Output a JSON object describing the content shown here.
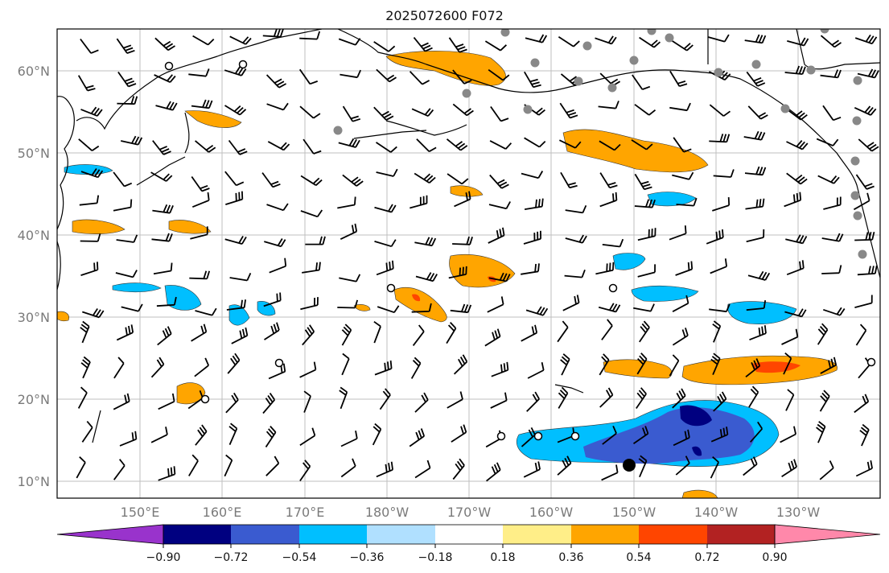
{
  "title": "2025072600 F072",
  "map": {
    "projection": "cylindrical",
    "extent": {
      "lon_min": 140,
      "lon_max": 240,
      "lat_min": 8,
      "lat_max": 65
    },
    "lat_labels": [
      {
        "lat": 10,
        "text": "10°N"
      },
      {
        "lat": 20,
        "text": "20°N"
      },
      {
        "lat": 30,
        "text": "30°N"
      },
      {
        "lat": 40,
        "text": "40°N"
      },
      {
        "lat": 50,
        "text": "50°N"
      },
      {
        "lat": 60,
        "text": "60°N"
      }
    ],
    "lon_labels": [
      {
        "lon": 150,
        "text": "150°E"
      },
      {
        "lon": 160,
        "text": "160°E"
      },
      {
        "lon": 170,
        "text": "170°E"
      },
      {
        "lon": 180,
        "text": "180°W"
      },
      {
        "lon": 190,
        "text": "170°W"
      },
      {
        "lon": 200,
        "text": "160°W"
      },
      {
        "lon": 210,
        "text": "150°W"
      },
      {
        "lon": 220,
        "text": "140°W"
      },
      {
        "lon": 230,
        "text": "130°W"
      }
    ],
    "gridlines": true,
    "fields": [
      "filled-contours",
      "wind-barbs",
      "station-markers"
    ]
  },
  "colorbar": {
    "colors": [
      "#9933cc",
      "#000080",
      "#3a5bd0",
      "#00bfff",
      "#b0e0ff",
      "#ffffff",
      "#ffee88",
      "#ffa500",
      "#ff4500",
      "#b22222",
      "#ff88aa"
    ],
    "ticks": [
      "−0.90",
      "−0.72",
      "−0.54",
      "−0.36",
      "−0.18",
      "0.18",
      "0.36",
      "0.54",
      "0.72",
      "0.90"
    ],
    "extend": "both"
  }
}
